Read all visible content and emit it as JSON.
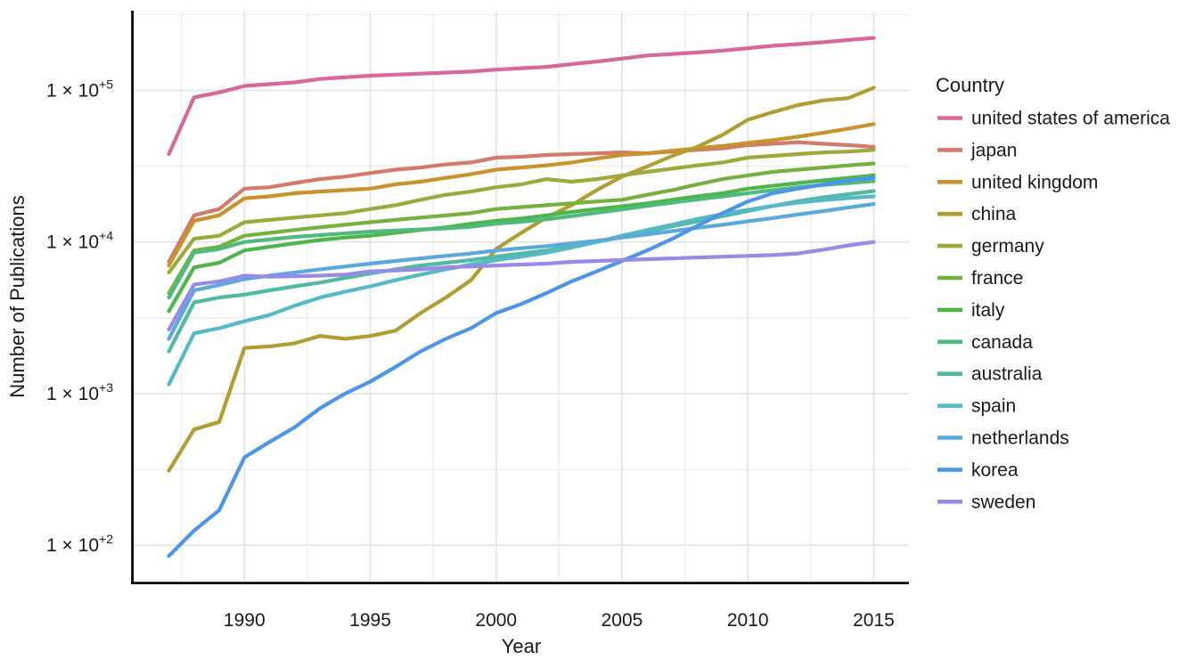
{
  "chart_data": {
    "type": "line",
    "title": "",
    "xlabel": "Year",
    "ylabel": "Number of Publications",
    "legend_title": "Country",
    "legend_position": "right",
    "grid": true,
    "y_scale": "log10",
    "x_years": [
      1987,
      1988,
      1989,
      1990,
      1991,
      1992,
      1993,
      1994,
      1995,
      1996,
      1997,
      1998,
      1999,
      2000,
      2001,
      2002,
      2003,
      2004,
      2005,
      2006,
      2007,
      2008,
      2009,
      2010,
      2011,
      2012,
      2013,
      2014,
      2015
    ],
    "x_ticks": [
      "1990",
      "1995",
      "2000",
      "2005",
      "2010",
      "2015"
    ],
    "x_tick_years": [
      1990,
      1995,
      2000,
      2005,
      2010,
      2015
    ],
    "x_minor_years": [
      1987.5,
      1992.5,
      1997.5,
      2002.5,
      2007.5,
      2012.5
    ],
    "y_ticks": [
      {
        "value": 100000,
        "mantissa": "1 × 10",
        "exp": "+5"
      },
      {
        "value": 10000,
        "mantissa": "1 × 10",
        "exp": "+4"
      },
      {
        "value": 1000,
        "mantissa": "1 × 10",
        "exp": "+3"
      },
      {
        "value": 100,
        "mantissa": "1 × 10",
        "exp": "+2"
      }
    ],
    "y_minor_values": [
      316228,
      31623,
      3162,
      316
    ],
    "axes": {
      "x_domain": [
        1985.6,
        2016.4
      ],
      "y_log_domain": [
        1.76,
        5.52
      ]
    },
    "series": [
      {
        "name": "united states of america",
        "color": "#D8689A",
        "values": [
          38000,
          90000,
          97000,
          107000,
          110000,
          113000,
          119000,
          122000,
          125000,
          127000,
          129000,
          131000,
          133000,
          137000,
          140000,
          143000,
          149000,
          155000,
          162000,
          170000,
          174000,
          178000,
          183000,
          190000,
          197000,
          202000,
          208000,
          215000,
          222000
        ]
      },
      {
        "name": "japan",
        "color": "#D37A6A",
        "values": [
          7400,
          15000,
          16500,
          22500,
          23000,
          24500,
          26000,
          27000,
          28500,
          30000,
          31000,
          32500,
          33500,
          36000,
          36500,
          37500,
          38000,
          38500,
          39000,
          38500,
          39500,
          40500,
          41500,
          43500,
          44500,
          45500,
          44500,
          43500,
          42500
        ]
      },
      {
        "name": "united kingdom",
        "color": "#C9922C",
        "values": [
          7000,
          13800,
          15000,
          19400,
          20000,
          21000,
          21500,
          22000,
          22500,
          24000,
          25000,
          26500,
          28000,
          30000,
          31000,
          32000,
          33500,
          35500,
          37500,
          38500,
          40000,
          41500,
          43000,
          45000,
          47000,
          49500,
          52500,
          56000,
          60000
        ]
      },
      {
        "name": "china",
        "color": "#B29D31",
        "values": [
          310,
          580,
          650,
          2000,
          2050,
          2150,
          2400,
          2300,
          2400,
          2600,
          3400,
          4300,
          5600,
          9000,
          11500,
          14500,
          17500,
          22000,
          27000,
          31500,
          37000,
          42500,
          51000,
          64000,
          72000,
          80000,
          86000,
          89000,
          104000
        ]
      },
      {
        "name": "germany",
        "color": "#9FA83B",
        "values": [
          6300,
          10500,
          11000,
          13500,
          14000,
          14500,
          15000,
          15500,
          16500,
          17500,
          19000,
          20500,
          21500,
          23000,
          24000,
          26000,
          25000,
          26000,
          27500,
          29000,
          30500,
          32000,
          33500,
          36000,
          37000,
          38000,
          39000,
          39500,
          40500
        ]
      },
      {
        "name": "france",
        "color": "#74B13F",
        "values": [
          4600,
          8800,
          9300,
          11000,
          11500,
          12000,
          12500,
          13000,
          13500,
          14000,
          14500,
          15000,
          15500,
          16500,
          17000,
          17500,
          18000,
          18500,
          19000,
          20500,
          22000,
          24000,
          26000,
          27500,
          29000,
          30000,
          31000,
          32000,
          33000
        ]
      },
      {
        "name": "italy",
        "color": "#4CB748",
        "values": [
          3500,
          6800,
          7300,
          8800,
          9300,
          9800,
          10300,
          10700,
          11000,
          11500,
          12000,
          12500,
          13200,
          13800,
          14300,
          15000,
          15800,
          16500,
          17200,
          18000,
          19000,
          20000,
          21000,
          22500,
          23500,
          24500,
          25500,
          26500,
          27500
        ]
      },
      {
        "name": "canada",
        "color": "#4EBA7D",
        "values": [
          4300,
          8500,
          9000,
          10000,
          10400,
          10800,
          11100,
          11400,
          11700,
          11900,
          12100,
          12300,
          12600,
          13200,
          13600,
          14100,
          14800,
          15600,
          16400,
          17300,
          18200,
          19100,
          20000,
          21000,
          22000,
          23000,
          23800,
          24500,
          25200
        ]
      },
      {
        "name": "australia",
        "color": "#50BAA2",
        "values": [
          1900,
          4000,
          4300,
          4500,
          4800,
          5100,
          5400,
          5800,
          6200,
          6600,
          7000,
          7300,
          7600,
          8000,
          8400,
          8800,
          9400,
          10000,
          10800,
          11700,
          12700,
          13700,
          14800,
          16000,
          17300,
          18600,
          19700,
          20700,
          21700
        ]
      },
      {
        "name": "spain",
        "color": "#55BAC6",
        "values": [
          1150,
          2500,
          2700,
          3000,
          3300,
          3800,
          4300,
          4700,
          5100,
          5600,
          6100,
          6600,
          7100,
          7600,
          8000,
          8500,
          9200,
          10000,
          11000,
          12000,
          13000,
          14200,
          15300,
          16300,
          17300,
          18200,
          18900,
          19500,
          20000
        ]
      },
      {
        "name": "netherlands",
        "color": "#5BA9DC",
        "values": [
          2300,
          4800,
          5200,
          5700,
          6000,
          6300,
          6600,
          6900,
          7200,
          7500,
          7800,
          8100,
          8400,
          8800,
          9100,
          9400,
          9800,
          10200,
          10700,
          11200,
          11800,
          12400,
          13000,
          13700,
          14400,
          15200,
          16000,
          16900,
          17800
        ]
      },
      {
        "name": "korea",
        "color": "#4D95E8",
        "values": [
          85,
          125,
          170,
          380,
          480,
          600,
          800,
          1000,
          1200,
          1500,
          1900,
          2300,
          2700,
          3400,
          3900,
          4600,
          5500,
          6400,
          7500,
          8800,
          10500,
          12800,
          15500,
          18500,
          21000,
          22500,
          24000,
          25500,
          26500
        ]
      },
      {
        "name": "sweden",
        "color": "#968CE6",
        "values": [
          2650,
          5250,
          5500,
          6000,
          5900,
          5950,
          6000,
          6100,
          6400,
          6500,
          6600,
          6800,
          6900,
          7000,
          7100,
          7200,
          7400,
          7500,
          7600,
          7700,
          7800,
          7900,
          8000,
          8100,
          8200,
          8400,
          8900,
          9500,
          10000
        ]
      }
    ]
  },
  "style_colors": {
    "grid_major": "#E2E2E2",
    "grid_minor": "#EDEDED",
    "axis_line": "#000000",
    "text": "#1A1A1A",
    "background": "#FFFFFF"
  }
}
